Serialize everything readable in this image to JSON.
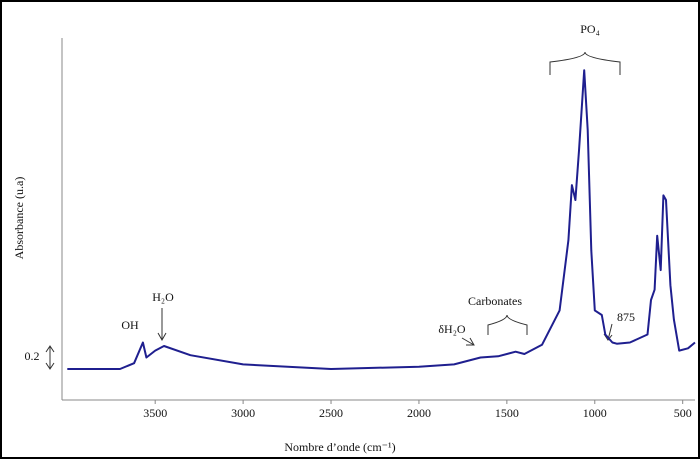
{
  "chart_data": {
    "type": "line",
    "xlabel": "Nombre d’onde  (cm⁻¹)",
    "ylabel": "Absorbance (u.a)",
    "x": [
      4000,
      3700,
      3620,
      3570,
      3550,
      3500,
      3450,
      3300,
      3000,
      2500,
      2000,
      1800,
      1650,
      1550,
      1450,
      1400,
      1300,
      1200,
      1150,
      1130,
      1110,
      1090,
      1060,
      1040,
      1020,
      1000,
      960,
      940,
      900,
      875,
      800,
      700,
      680,
      660,
      645,
      625,
      610,
      595,
      570,
      550,
      520,
      470,
      430
    ],
    "values": [
      0.27,
      0.27,
      0.32,
      0.5,
      0.37,
      0.43,
      0.47,
      0.39,
      0.31,
      0.27,
      0.29,
      0.31,
      0.37,
      0.38,
      0.42,
      0.4,
      0.48,
      0.78,
      1.39,
      1.87,
      1.74,
      2.17,
      2.87,
      2.35,
      1.3,
      0.78,
      0.74,
      0.57,
      0.5,
      0.49,
      0.5,
      0.57,
      0.87,
      0.96,
      1.43,
      1.13,
      1.78,
      1.74,
      1.0,
      0.7,
      0.43,
      0.45,
      0.5
    ],
    "color": "#1f1f8f",
    "xlim": [
      4030,
      430
    ],
    "ylim": [
      0,
      3.15
    ],
    "xticks": [
      3500,
      3000,
      2500,
      2000,
      1500,
      1000,
      500
    ],
    "scale_bar": 0.2,
    "annotations": [
      "OH",
      "H₂O",
      "δH₂O",
      "Carbonates",
      "PO₄",
      "875"
    ]
  }
}
